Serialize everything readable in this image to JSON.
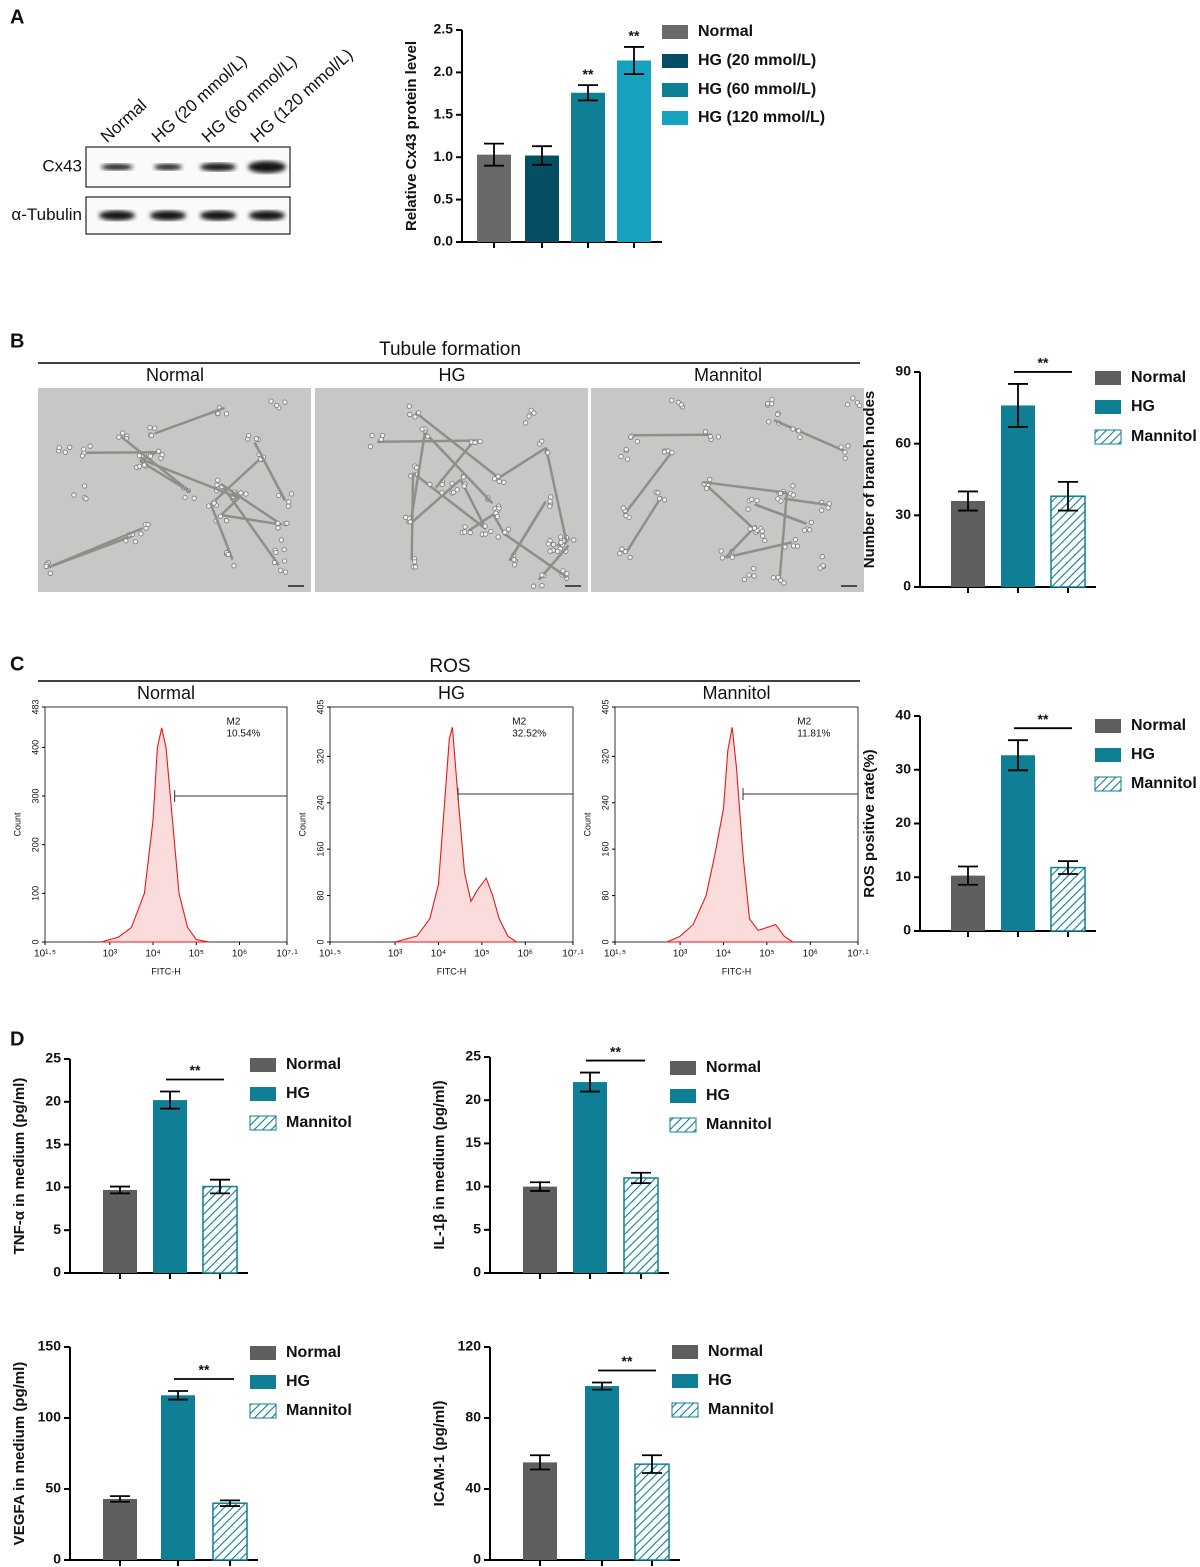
{
  "panels": [
    "A",
    "B",
    "C",
    "D"
  ],
  "blot": {
    "lanes": [
      "Normal",
      "HG (20 mmol/L)",
      "HG (60 mmol/L)",
      "HG (120 mmol/L)"
    ],
    "rows": [
      "Cx43",
      "α-Tubulin"
    ]
  },
  "tubule": {
    "title": "Tubule formation",
    "images": [
      "Normal",
      "HG",
      "Mannitol"
    ]
  },
  "ros_flow": {
    "title": "ROS",
    "xlabel": "FITC-H",
    "ylabel": "Count",
    "xlim": [
      1.5,
      7.1
    ],
    "xticks": [
      {
        "value": 1.5,
        "label": "10¹·⁵"
      },
      {
        "value": 3,
        "label": "10³"
      },
      {
        "value": 4,
        "label": "10⁴"
      },
      {
        "value": 5,
        "label": "10⁵"
      },
      {
        "value": 6,
        "label": "10⁶"
      },
      {
        "value": 7.1,
        "label": "10⁷·¹"
      }
    ],
    "plots": [
      {
        "name": "Normal",
        "ylim": [
          0,
          483
        ],
        "yticks": [
          0,
          100,
          200,
          300,
          400,
          483
        ],
        "x": [
          2.8,
          3.2,
          3.5,
          3.8,
          4.0,
          4.1,
          4.2,
          4.3,
          4.45,
          4.6,
          4.8,
          5.0,
          5.3
        ],
        "values": [
          0,
          10,
          30,
          100,
          250,
          400,
          440,
          400,
          250,
          100,
          30,
          5,
          0
        ],
        "gate": {
          "label": "M2",
          "percent": "10.54%",
          "x": [
            4.5,
            7.1
          ],
          "y": 300
        }
      },
      {
        "name": "HG",
        "ylim": [
          0,
          405
        ],
        "yticks": [
          0,
          80,
          160,
          240,
          320,
          405
        ],
        "x": [
          3.0,
          3.5,
          3.8,
          4.0,
          4.15,
          4.25,
          4.32,
          4.45,
          4.6,
          4.75,
          4.9,
          5.1,
          5.25,
          5.4,
          5.6,
          5.8
        ],
        "values": [
          0,
          10,
          40,
          100,
          250,
          350,
          370,
          250,
          120,
          70,
          90,
          110,
          80,
          40,
          10,
          0
        ],
        "gate": {
          "label": "M2",
          "percent": "32.52%",
          "x": [
            4.45,
            7.1
          ],
          "y": 255
        }
      },
      {
        "name": "Mannitol",
        "ylim": [
          0,
          405
        ],
        "yticks": [
          0,
          80,
          160,
          240,
          320,
          405
        ],
        "x": [
          2.7,
          3.0,
          3.3,
          3.6,
          3.8,
          4.0,
          4.1,
          4.2,
          4.3,
          4.45,
          4.6,
          4.8,
          5.0,
          5.2,
          5.4,
          5.6
        ],
        "values": [
          0,
          10,
          30,
          80,
          150,
          230,
          330,
          370,
          300,
          150,
          40,
          20,
          25,
          30,
          10,
          0
        ],
        "gate": {
          "label": "M2",
          "percent": "11.81%",
          "x": [
            4.45,
            7.1
          ],
          "y": 255
        }
      }
    ]
  },
  "chart_data": [
    {
      "type": "bar",
      "ylabel": "Relative Cx43 protein level",
      "ylim": [
        0,
        2.5
      ],
      "yticks": [
        {
          "value": 0,
          "label": "0.0"
        },
        0.5,
        {
          "value": 1,
          "label": "1.0"
        },
        1.5,
        {
          "value": 2,
          "label": "2.0"
        },
        2.5
      ],
      "series": [
        {
          "name": "Normal",
          "color": "#696969",
          "values": [
            1.03
          ],
          "errors": [
            0.13
          ]
        },
        {
          "name": "HG (20 mmol/L)",
          "color": "#044f63",
          "values": [
            1.02
          ],
          "errors": [
            0.11
          ]
        },
        {
          "name": "HG (60 mmol/L)",
          "color": "#0e7f94",
          "values": [
            1.76
          ],
          "errors": [
            0.09
          ],
          "annotation": "**"
        },
        {
          "name": "HG (120 mmol/L)",
          "color": "#17a3bf",
          "values": [
            2.14
          ],
          "errors": [
            0.16
          ],
          "annotation": "**"
        }
      ]
    },
    {
      "type": "bar",
      "ylabel": "Number of branch nodes",
      "ylim": [
        0,
        90
      ],
      "yticks": [
        0,
        30,
        60,
        90
      ],
      "significance": "**",
      "series": [
        {
          "name": "Normal",
          "color": "#5f5f5f",
          "values": [
            36
          ],
          "errors": [
            4
          ]
        },
        {
          "name": "HG",
          "color": "#0e7f94",
          "values": [
            76
          ],
          "errors": [
            9
          ]
        },
        {
          "name": "Mannitol",
          "color": "#0e7f94",
          "hatch": true,
          "values": [
            38
          ],
          "errors": [
            6
          ]
        }
      ]
    },
    {
      "type": "bar",
      "ylabel": "ROS positive rate(%)",
      "ylim": [
        0,
        40
      ],
      "yticks": [
        0,
        10,
        20,
        30,
        40
      ],
      "significance": "**",
      "series": [
        {
          "name": "Normal",
          "color": "#5f5f5f",
          "values": [
            10.3
          ],
          "errors": [
            1.7
          ]
        },
        {
          "name": "HG",
          "color": "#0e7f94",
          "values": [
            32.7
          ],
          "errors": [
            2.8
          ]
        },
        {
          "name": "Mannitol",
          "color": "#0e7f94",
          "hatch": true,
          "values": [
            11.8
          ],
          "errors": [
            1.2
          ]
        }
      ]
    },
    {
      "type": "bar",
      "ylabel": "TNF-α in medium (pg/ml)",
      "ylim": [
        0,
        25
      ],
      "yticks": [
        0,
        5,
        10,
        15,
        20,
        25
      ],
      "significance": "**",
      "series": [
        {
          "name": "Normal",
          "color": "#5f5f5f",
          "values": [
            9.7
          ],
          "errors": [
            0.4
          ]
        },
        {
          "name": "HG",
          "color": "#0e7f94",
          "values": [
            20.2
          ],
          "errors": [
            1.0
          ]
        },
        {
          "name": "Mannitol",
          "color": "#0e7f94",
          "hatch": true,
          "values": [
            10.1
          ],
          "errors": [
            0.8
          ]
        }
      ]
    },
    {
      "type": "bar",
      "ylabel": "IL-1β in medium (pg/ml)",
      "ylim": [
        0,
        25
      ],
      "yticks": [
        0,
        5,
        10,
        15,
        20,
        25
      ],
      "significance": "**",
      "series": [
        {
          "name": "Normal",
          "color": "#5f5f5f",
          "values": [
            10.0
          ],
          "errors": [
            0.5
          ]
        },
        {
          "name": "HG",
          "color": "#0e7f94",
          "values": [
            22.1
          ],
          "errors": [
            1.1
          ]
        },
        {
          "name": "Mannitol",
          "color": "#0e7f94",
          "hatch": true,
          "values": [
            11.0
          ],
          "errors": [
            0.6
          ]
        }
      ]
    },
    {
      "type": "bar",
      "ylabel": "VEGFA in medium (pg/ml)",
      "ylim": [
        0,
        150
      ],
      "yticks": [
        0,
        50,
        100,
        150
      ],
      "significance": "**",
      "series": [
        {
          "name": "Normal",
          "color": "#5f5f5f",
          "values": [
            43
          ],
          "errors": [
            2
          ]
        },
        {
          "name": "HG",
          "color": "#0e7f94",
          "values": [
            116
          ],
          "errors": [
            3
          ]
        },
        {
          "name": "Mannitol",
          "color": "#0e7f94",
          "hatch": true,
          "values": [
            40
          ],
          "errors": [
            2
          ]
        }
      ]
    },
    {
      "type": "bar",
      "ylabel": "ICAM-1 (pg/ml)",
      "ylim": [
        0,
        120
      ],
      "yticks": [
        0,
        40,
        80,
        120
      ],
      "significance": "**",
      "series": [
        {
          "name": "Normal",
          "color": "#5f5f5f",
          "values": [
            55
          ],
          "errors": [
            4
          ]
        },
        {
          "name": "HG",
          "color": "#0e7f94",
          "values": [
            98
          ],
          "errors": [
            2
          ]
        },
        {
          "name": "Mannitol",
          "color": "#0e7f94",
          "hatch": true,
          "values": [
            54
          ],
          "errors": [
            5
          ]
        }
      ]
    }
  ]
}
